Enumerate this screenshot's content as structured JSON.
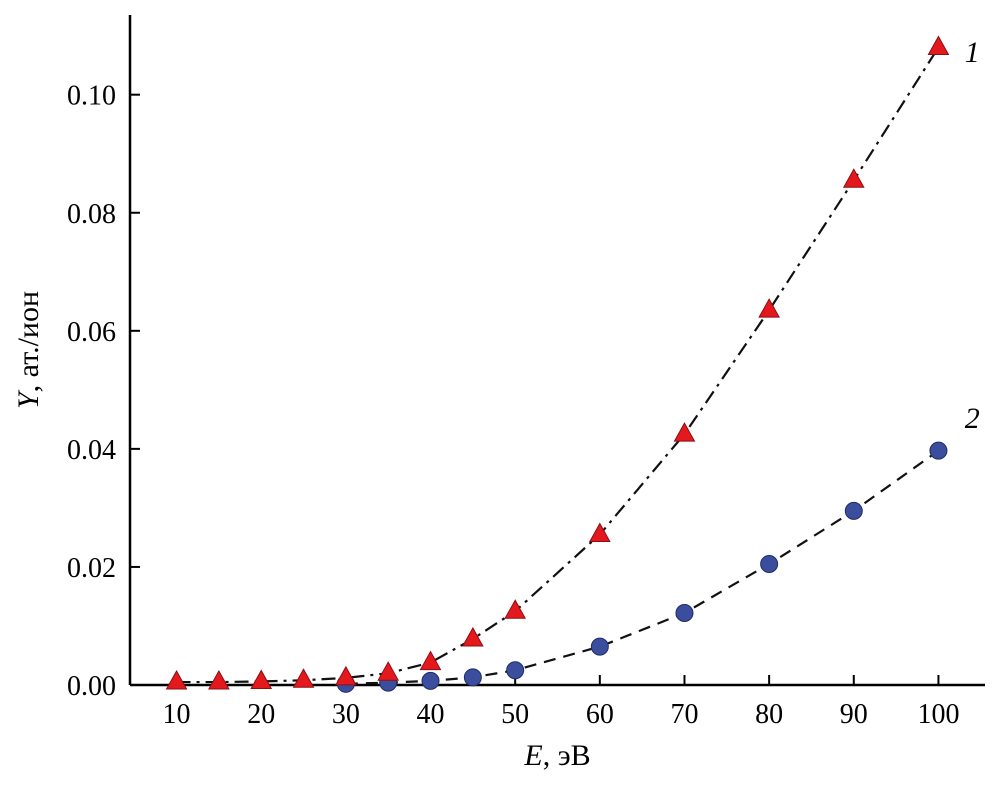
{
  "figure": {
    "background": "#ffffff",
    "axis_color": "#000000"
  },
  "chart_data": {
    "type": "scatter",
    "title": "",
    "xlabel": {
      "italic": "E",
      "rest": ", эВ"
    },
    "ylabel": {
      "italic": "Y",
      "rest": ", ат./ион"
    },
    "xlim": [
      4.5,
      105.5
    ],
    "ylim": [
      0,
      0.1135
    ],
    "grid": false,
    "legend_position": "none",
    "xticks": [
      10,
      20,
      30,
      40,
      50,
      60,
      70,
      80,
      90,
      100
    ],
    "xtick_labels": [
      "10",
      "20",
      "30",
      "40",
      "50",
      "60",
      "70",
      "80",
      "90",
      "100"
    ],
    "yticks": [
      0.0,
      0.02,
      0.04,
      0.06,
      0.08,
      0.1
    ],
    "ytick_labels": [
      "0.00",
      "0.02",
      "0.04",
      "0.06",
      "0.08",
      "0.10"
    ],
    "series": [
      {
        "name": "1",
        "marker": "triangle",
        "marker_color": "#e3191e",
        "marker_edge": "#8f0d12",
        "line_style": "dashdot",
        "line_color": "#111111",
        "x": [
          10,
          15,
          20,
          25,
          30,
          35,
          40,
          45,
          50,
          60,
          70,
          80,
          90,
          100
        ],
        "y": [
          0.0005,
          0.0005,
          0.0006,
          0.0008,
          0.0012,
          0.002,
          0.0038,
          0.0078,
          0.0125,
          0.0255,
          0.0425,
          0.0635,
          0.0855,
          0.108
        ],
        "label_pos": {
          "x": 104,
          "y": 0.1055
        }
      },
      {
        "name": "2",
        "marker": "circle",
        "marker_color": "#3b4e9e",
        "marker_edge": "#1f2c66",
        "line_style": "dashed",
        "line_color": "#111111",
        "x": [
          30,
          35,
          40,
          45,
          50,
          60,
          70,
          80,
          90,
          100
        ],
        "y": [
          0.0002,
          0.0004,
          0.0007,
          0.0013,
          0.0025,
          0.0065,
          0.0122,
          0.0205,
          0.0295,
          0.0397
        ],
        "label_pos": {
          "x": 104,
          "y": 0.0435
        }
      }
    ]
  }
}
